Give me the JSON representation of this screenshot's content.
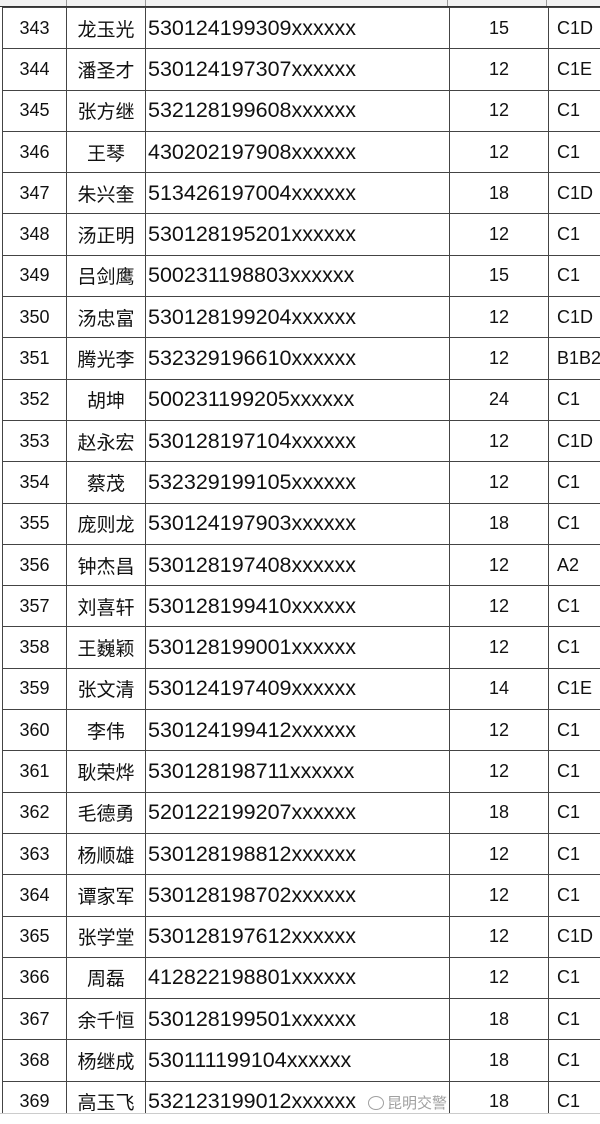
{
  "rows": [
    {
      "no": "343",
      "name": "龙玉光",
      "id": "530124199309xxxxxx",
      "score": "15",
      "cls": "C1D"
    },
    {
      "no": "344",
      "name": "潘圣才",
      "id": "530124197307xxxxxx",
      "score": "12",
      "cls": "C1E"
    },
    {
      "no": "345",
      "name": "张方继",
      "id": "532128199608xxxxxx",
      "score": "12",
      "cls": "C1"
    },
    {
      "no": "346",
      "name": "王琴",
      "id": "430202197908xxxxxx",
      "score": "12",
      "cls": "C1"
    },
    {
      "no": "347",
      "name": "朱兴奎",
      "id": "513426197004xxxxxx",
      "score": "18",
      "cls": "C1D"
    },
    {
      "no": "348",
      "name": "汤正明",
      "id": "530128195201xxxxxx",
      "score": "12",
      "cls": "C1"
    },
    {
      "no": "349",
      "name": "吕剑鹰",
      "id": "500231198803xxxxxx",
      "score": "15",
      "cls": "C1"
    },
    {
      "no": "350",
      "name": "汤忠富",
      "id": "530128199204xxxxxx",
      "score": "12",
      "cls": "C1D"
    },
    {
      "no": "351",
      "name": "腾光李",
      "id": "532329196610xxxxxx",
      "score": "12",
      "cls": "B1B2"
    },
    {
      "no": "352",
      "name": "胡坤",
      "id": "500231199205xxxxxx",
      "score": "24",
      "cls": "C1"
    },
    {
      "no": "353",
      "name": "赵永宏",
      "id": "530128197104xxxxxx",
      "score": "12",
      "cls": "C1D"
    },
    {
      "no": "354",
      "name": "蔡茂",
      "id": "532329199105xxxxxx",
      "score": "12",
      "cls": "C1"
    },
    {
      "no": "355",
      "name": "庞则龙",
      "id": "530124197903xxxxxx",
      "score": "18",
      "cls": "C1"
    },
    {
      "no": "356",
      "name": "钟杰昌",
      "id": "530128197408xxxxxx",
      "score": "12",
      "cls": "A2"
    },
    {
      "no": "357",
      "name": "刘喜轩",
      "id": "530128199410xxxxxx",
      "score": "12",
      "cls": "C1"
    },
    {
      "no": "358",
      "name": "王巍颖",
      "id": "530128199001xxxxxx",
      "score": "12",
      "cls": "C1"
    },
    {
      "no": "359",
      "name": "张文清",
      "id": "530124197409xxxxxx",
      "score": "14",
      "cls": "C1E"
    },
    {
      "no": "360",
      "name": "李伟",
      "id": "530124199412xxxxxx",
      "score": "12",
      "cls": "C1"
    },
    {
      "no": "361",
      "name": "耿荣烨",
      "id": "530128198711xxxxxx",
      "score": "12",
      "cls": "C1"
    },
    {
      "no": "362",
      "name": "毛德勇",
      "id": "520122199207xxxxxx",
      "score": "18",
      "cls": "C1"
    },
    {
      "no": "363",
      "name": "杨顺雄",
      "id": "530128198812xxxxxx",
      "score": "12",
      "cls": "C1"
    },
    {
      "no": "364",
      "name": "谭家军",
      "id": "530128198702xxxxxx",
      "score": "12",
      "cls": "C1"
    },
    {
      "no": "365",
      "name": "张学堂",
      "id": "530128197612xxxxxx",
      "score": "12",
      "cls": "C1D"
    },
    {
      "no": "366",
      "name": "周磊",
      "id": "412822198801xxxxxx",
      "score": "12",
      "cls": "C1"
    },
    {
      "no": "367",
      "name": "余千恒",
      "id": "530128199501xxxxxx",
      "score": "18",
      "cls": "C1"
    },
    {
      "no": "368",
      "name": "杨继成",
      "id": "530111199104xxxxxx",
      "score": "18",
      "cls": "C1"
    },
    {
      "no": "369",
      "name": "高玉飞",
      "id": "532123199012xxxxxx",
      "score": "18",
      "cls": "C1"
    }
  ],
  "watermark": {
    "text": "昆明交警",
    "icon": "wechat-icon"
  }
}
